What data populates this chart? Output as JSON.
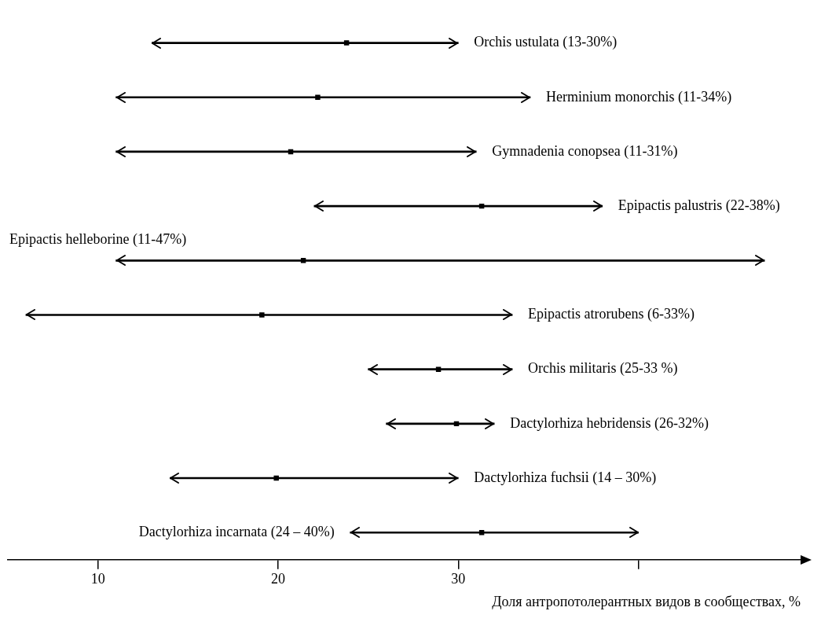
{
  "chart_data": {
    "type": "bar",
    "orientation": "horizontal",
    "xlabel": "Доля антропотолерантных видов в сообществах, %",
    "categories": [
      "Orchis ustulata (13-30%)",
      "Herminium monorchis (11-34%)",
      "Gymnadenia conopsea (11-31%)",
      "Epipactis palustris (22-38%)",
      "Epipactis helleborine (11-47%)",
      "Epipactis atrorubens (6-33%)",
      "Orchis militaris (25-33 %)",
      "Dactylorhiza hebridensis (26-32%)",
      "Dactylorhiza fuchsii (14 – 30%)",
      "Dactylorhiza incarnata (24 – 40%)"
    ],
    "series": [
      {
        "color": "#000000",
        "base": [
          13,
          11,
          11,
          22,
          11,
          6,
          25,
          26,
          14,
          24
        ],
        "values": [
          17,
          23,
          20,
          16,
          36,
          27,
          8,
          6,
          16,
          16
        ]
      },
      {
        "type": "scatter",
        "color": "#000000",
        "x": [
          "Orchis ustulata (13-30%)",
          "Herminium monorchis (11-34%)",
          "Gymnadenia conopsea (11-31%)",
          "Epipactis palustris (22-38%)",
          "Epipactis helleborine (11-47%)",
          "Epipactis atrorubens (6-33%)",
          "Orchis militaris (25-33 %)",
          "Dactylorhiza hebridensis (26-32%)",
          "Dactylorhiza fuchsii (14 – 30%)",
          "Dactylorhiza incarnata (24 – 40%)"
        ],
        "values": [
          23.8,
          22.2,
          20.7,
          31.3,
          21.4,
          19.1,
          28.9,
          29.9,
          19.9,
          31.3
        ]
      }
    ],
    "xlim": [
      5,
      49
    ],
    "xticks": [
      10,
      20,
      30,
      {
        "value": 40,
        "label": null
      }
    ],
    "tick_labels": "x",
    "grid": false,
    "legend": false
  }
}
